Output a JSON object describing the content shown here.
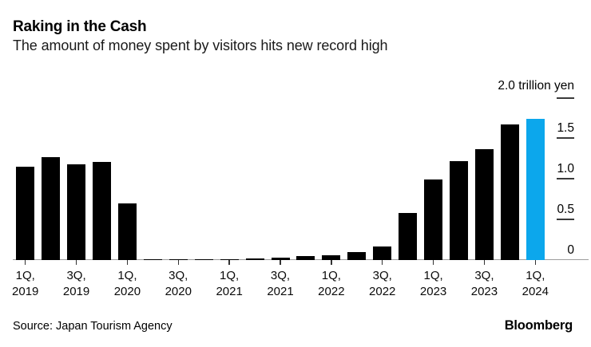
{
  "header": {
    "title": "Raking in the Cash",
    "subtitle": "The amount of money spent by visitors hits new record high"
  },
  "chart_data": {
    "type": "bar",
    "title": "Raking in the Cash",
    "subtitle": "The amount of money spent by visitors hits new record high",
    "unit_label": "2.0 trillion yen",
    "ylabel": "trillion yen",
    "ylim": [
      0,
      2.0
    ],
    "y_ticks": [
      0,
      0.5,
      1.0,
      1.5,
      2.0
    ],
    "y_tick_labels": [
      "0",
      "0.5",
      "1.0",
      "1.5"
    ],
    "grid": false,
    "categories": [
      "1Q 2019",
      "2Q 2019",
      "3Q 2019",
      "4Q 2019",
      "1Q 2020",
      "2Q 2020",
      "3Q 2020",
      "4Q 2020",
      "1Q 2021",
      "2Q 2021",
      "3Q 2021",
      "4Q 2021",
      "1Q 2022",
      "2Q 2022",
      "3Q 2022",
      "4Q 2022",
      "1Q 2023",
      "2Q 2023",
      "3Q 2023",
      "4Q 2023",
      "1Q 2024"
    ],
    "values": [
      1.15,
      1.27,
      1.18,
      1.21,
      0.7,
      0.01,
      0.01,
      0.01,
      0.01,
      0.02,
      0.03,
      0.05,
      0.06,
      0.1,
      0.17,
      0.58,
      1.0,
      1.22,
      1.37,
      1.68,
      1.75
    ],
    "x_tick_indices": [
      0,
      2,
      4,
      6,
      8,
      10,
      12,
      14,
      16,
      18,
      20
    ],
    "x_tick_labels": [
      [
        "1Q,",
        "2019"
      ],
      [
        "3Q,",
        "2019"
      ],
      [
        "1Q,",
        "2020"
      ],
      [
        "3Q,",
        "2020"
      ],
      [
        "1Q,",
        "2021"
      ],
      [
        "3Q,",
        "2021"
      ],
      [
        "1Q,",
        "2022"
      ],
      [
        "3Q,",
        "2022"
      ],
      [
        "1Q,",
        "2023"
      ],
      [
        "3Q,",
        "2023"
      ],
      [
        "1Q,",
        "2024"
      ]
    ],
    "highlight_index": 20,
    "bar_color": "#000000",
    "highlight_color": "#0ca7ec",
    "axis_color": "#9d9d9d",
    "tick_color": "#3a3a3a"
  },
  "footer": {
    "source": "Source: Japan Tourism Agency",
    "brand": "Bloomberg"
  }
}
